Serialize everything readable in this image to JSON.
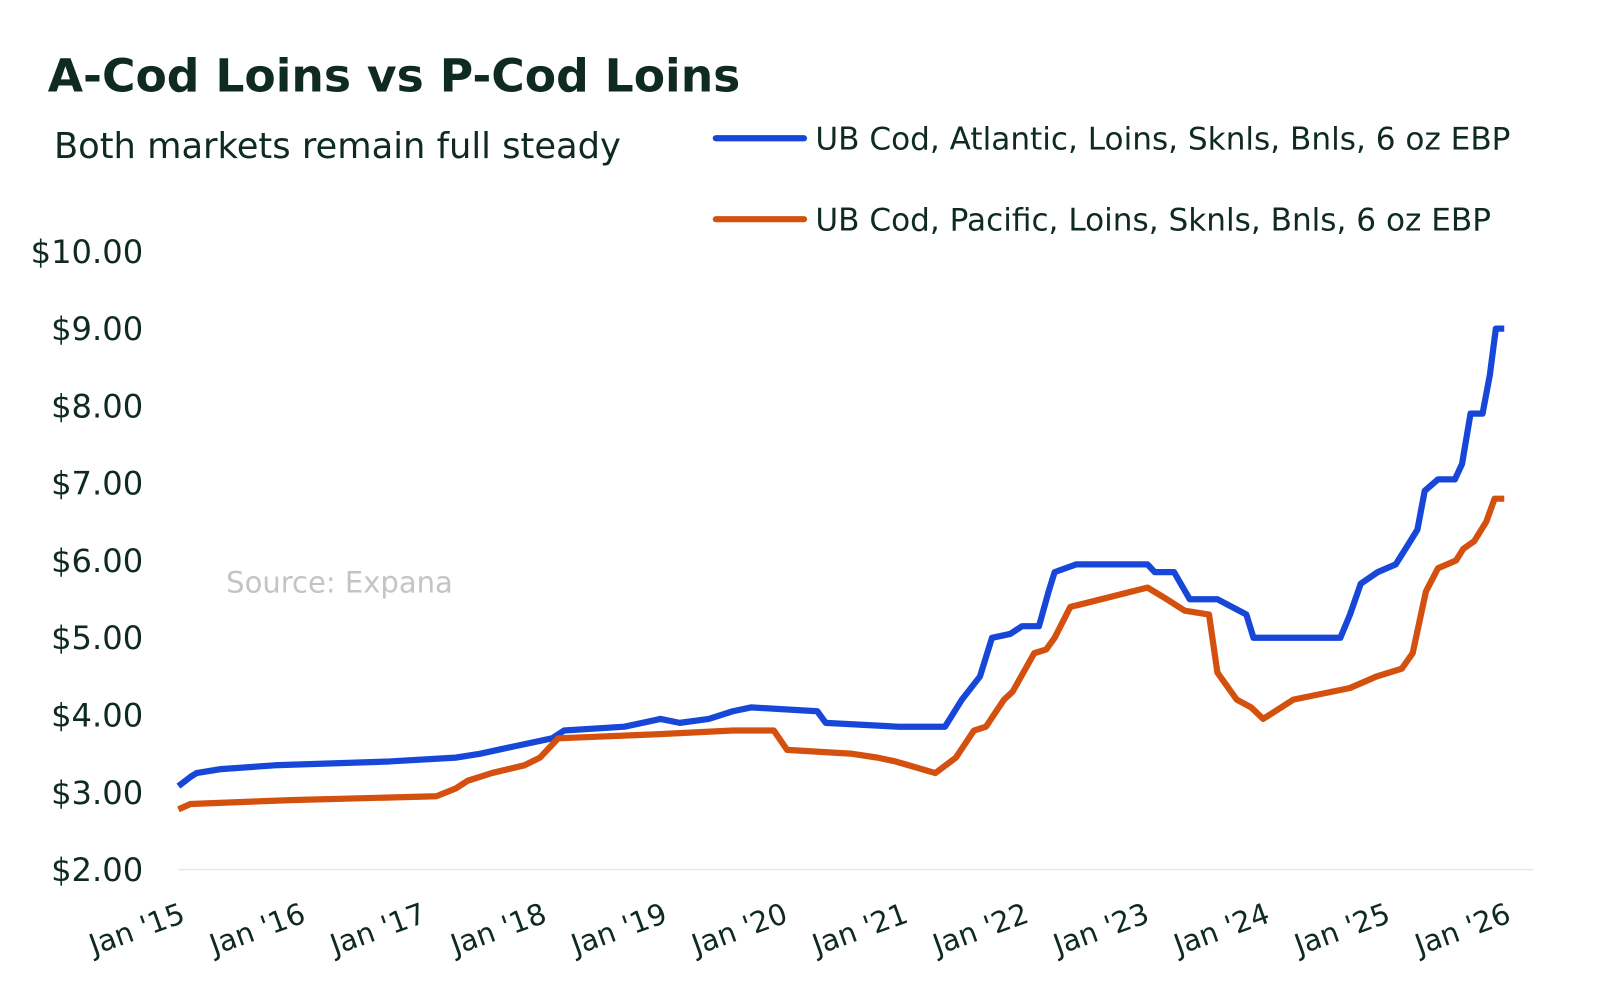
{
  "chart_data": {
    "type": "line",
    "title": "A-Cod Loins vs P-Cod Loins",
    "subtitle": "Both markets remain full steady",
    "annotation": "Source: Expana",
    "legend": "top-right",
    "xlim": [
      2015,
      2026.1
    ],
    "xticks": [
      {
        "value": 2015,
        "label": "Jan '15"
      },
      {
        "value": 2016,
        "label": "Jan '16"
      },
      {
        "value": 2017,
        "label": "Jan '17"
      },
      {
        "value": 2018,
        "label": "Jan '18"
      },
      {
        "value": 2019,
        "label": "Jan '19"
      },
      {
        "value": 2020,
        "label": "Jan '20"
      },
      {
        "value": 2021,
        "label": "Jan '21"
      },
      {
        "value": 2022,
        "label": "Jan '22"
      },
      {
        "value": 2023,
        "label": "Jan '23"
      },
      {
        "value": 2024,
        "label": "Jan '24"
      },
      {
        "value": 2025,
        "label": "Jan '25"
      },
      {
        "value": 2026,
        "label": "Jan '26"
      }
    ],
    "ylim": [
      2,
      10
    ],
    "yticks": [
      {
        "value": 2,
        "label": "$2.00"
      },
      {
        "value": 3,
        "label": "$3.00"
      },
      {
        "value": 4,
        "label": "$4.00"
      },
      {
        "value": 5,
        "label": "$5.00"
      },
      {
        "value": 6,
        "label": "$6.00"
      },
      {
        "value": 7,
        "label": "$7.00"
      },
      {
        "value": 8,
        "label": "$8.00"
      },
      {
        "value": 9,
        "label": "$9.00"
      },
      {
        "value": 10,
        "label": "$10.00"
      }
    ],
    "series": [
      {
        "name": "UB Cod, Atlantic, Loins, Sknls, Bnls, 6 oz EBP",
        "color": "#1747d9",
        "x": [
          2015.0,
          2015.1,
          2015.15,
          2015.35,
          2015.8,
          2016.75,
          2017.3,
          2017.5,
          2017.8,
          2018.1,
          2018.2,
          2018.7,
          2019.0,
          2019.16,
          2019.4,
          2019.6,
          2019.75,
          2020.3,
          2020.37,
          2020.97,
          2021.36,
          2021.5,
          2021.65,
          2021.75,
          2021.9,
          2022.0,
          2022.14,
          2022.22,
          2022.27,
          2022.45,
          2023.04,
          2023.1,
          2023.26,
          2023.39,
          2023.62,
          2023.86,
          2023.92,
          2024.64,
          2024.72,
          2024.81,
          2024.95,
          2025.1,
          2025.2,
          2025.28,
          2025.34,
          2025.45,
          2025.59,
          2025.65,
          2025.72,
          2025.82,
          2025.88,
          2025.93,
          2026.0
        ],
        "values": [
          3.08,
          3.2,
          3.25,
          3.3,
          3.35,
          3.4,
          3.45,
          3.5,
          3.6,
          3.7,
          3.8,
          3.85,
          3.95,
          3.9,
          3.95,
          4.05,
          4.1,
          4.05,
          3.9,
          3.85,
          3.85,
          4.2,
          4.5,
          5.0,
          5.05,
          5.15,
          5.15,
          5.6,
          5.85,
          5.95,
          5.95,
          5.85,
          5.85,
          5.5,
          5.5,
          5.3,
          5.0,
          5.0,
          5.3,
          5.7,
          5.85,
          5.95,
          6.2,
          6.4,
          6.9,
          7.05,
          7.05,
          7.25,
          7.9,
          7.9,
          8.4,
          9.0,
          9.0
        ]
      },
      {
        "name": "UB Cod, Pacific, Loins, Sknls, Bnls, 6 oz EBP",
        "color": "#d4500f",
        "x": [
          2015.0,
          2015.1,
          2015.93,
          2017.14,
          2017.3,
          2017.4,
          2017.6,
          2017.87,
          2018.0,
          2018.15,
          2018.95,
          2019.6,
          2019.94,
          2020.05,
          2020.59,
          2020.8,
          2020.95,
          2021.28,
          2021.45,
          2021.6,
          2021.7,
          2021.85,
          2021.92,
          2022.1,
          2022.2,
          2022.27,
          2022.4,
          2022.53,
          2023.04,
          2023.2,
          2023.35,
          2023.55,
          2023.62,
          2023.78,
          2023.9,
          2024.0,
          2024.25,
          2024.72,
          2024.94,
          2025.15,
          2025.24,
          2025.35,
          2025.45,
          2025.6,
          2025.66,
          2025.75,
          2025.85,
          2025.92,
          2026.0
        ],
        "values": [
          2.78,
          2.85,
          2.9,
          2.95,
          3.05,
          3.15,
          3.25,
          3.35,
          3.45,
          3.7,
          3.75,
          3.8,
          3.8,
          3.55,
          3.5,
          3.45,
          3.4,
          3.25,
          3.45,
          3.8,
          3.85,
          4.2,
          4.3,
          4.8,
          4.85,
          5.0,
          5.4,
          5.45,
          5.65,
          5.5,
          5.35,
          5.3,
          4.55,
          4.2,
          4.1,
          3.95,
          4.2,
          4.35,
          4.5,
          4.6,
          4.8,
          5.6,
          5.9,
          6.0,
          6.15,
          6.25,
          6.5,
          6.8,
          6.8
        ]
      }
    ]
  }
}
